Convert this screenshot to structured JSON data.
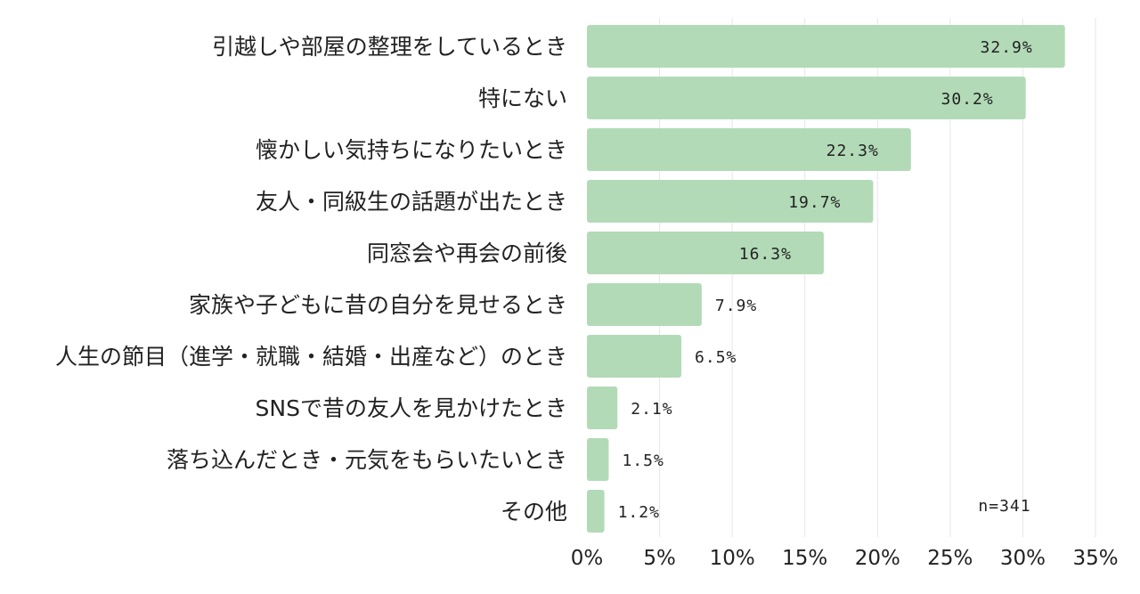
{
  "chart_data": {
    "type": "bar",
    "orientation": "horizontal",
    "categories": [
      "引越しや部屋の整理をしているとき",
      "特にない",
      "懐かしい気持ちになりたいとき",
      "友人・同級生の話題が出たとき",
      "同窓会や再会の前後",
      "家族や子どもに昔の自分を見せるとき",
      "人生の節目（進学・就職・結婚・出産など）のとき",
      "SNSで昔の友人を見かけたとき",
      "落ち込んだとき・元気をもらいたいとき",
      "その他"
    ],
    "values": [
      32.9,
      30.2,
      22.3,
      19.7,
      16.3,
      7.9,
      6.5,
      2.1,
      1.5,
      1.2
    ],
    "value_labels": [
      "32.9%",
      "30.2%",
      "22.3%",
      "19.7%",
      "16.3%",
      "7.9%",
      "6.5%",
      "2.1%",
      "1.5%",
      "1.2%"
    ],
    "xlim": [
      0,
      35
    ],
    "xticks": [
      0,
      5,
      10,
      15,
      20,
      25,
      30,
      35
    ],
    "xtick_labels": [
      "0%",
      "5%",
      "10%",
      "15%",
      "20%",
      "25%",
      "30%",
      "35%"
    ],
    "title": "",
    "xlabel": "",
    "ylabel": "",
    "grid": true,
    "annotation": "n=341",
    "bar_color": "#b2dab7"
  }
}
